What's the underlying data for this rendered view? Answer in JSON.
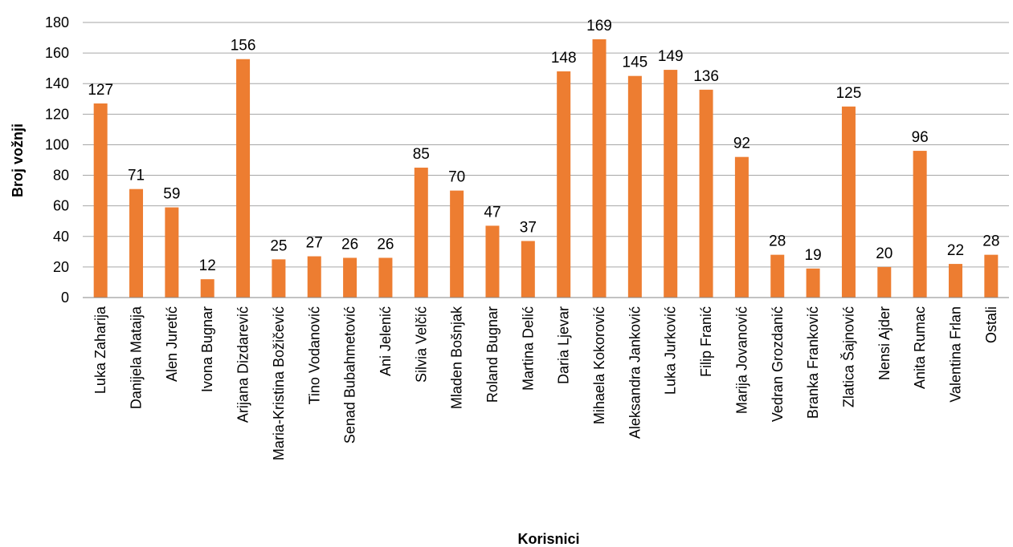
{
  "chart_data": {
    "type": "bar",
    "title": "",
    "xlabel": "Korisnici",
    "ylabel": "Broj vožnji",
    "ylim": [
      0,
      180
    ],
    "yticks": [
      0,
      20,
      40,
      60,
      80,
      100,
      120,
      140,
      160,
      180
    ],
    "grid": true,
    "legend": "none",
    "bar_color": "#ED7D31",
    "categories": [
      "Luka Zaharija",
      "Danijela Mataija",
      "Alen Juretić",
      "Ivona Bugnar",
      "Arijana Dizdarević",
      "Maria-Kristina Božičević",
      "Tino Vodanović",
      "Senad Bubahmetović",
      "Ani Jelenić",
      "Silvia Velčić",
      "Mladen Bošnjak",
      "Roland Bugnar",
      "Martina Delić",
      "Daria Ljevar",
      "Mihaela Kokorović",
      "Aleksandra Janković",
      "Luka Jurković",
      "Filip Franić",
      "Marija Jovanović",
      "Vedran Grozdanić",
      "Branka Franković",
      "Zlatica Šajnović",
      "Nensi Ajder",
      "Anita Rumac",
      "Valentina Frlan",
      "Ostali"
    ],
    "values": [
      127,
      71,
      59,
      12,
      156,
      25,
      27,
      26,
      26,
      85,
      70,
      47,
      37,
      148,
      169,
      145,
      149,
      136,
      92,
      28,
      19,
      125,
      20,
      96,
      22,
      28
    ]
  }
}
